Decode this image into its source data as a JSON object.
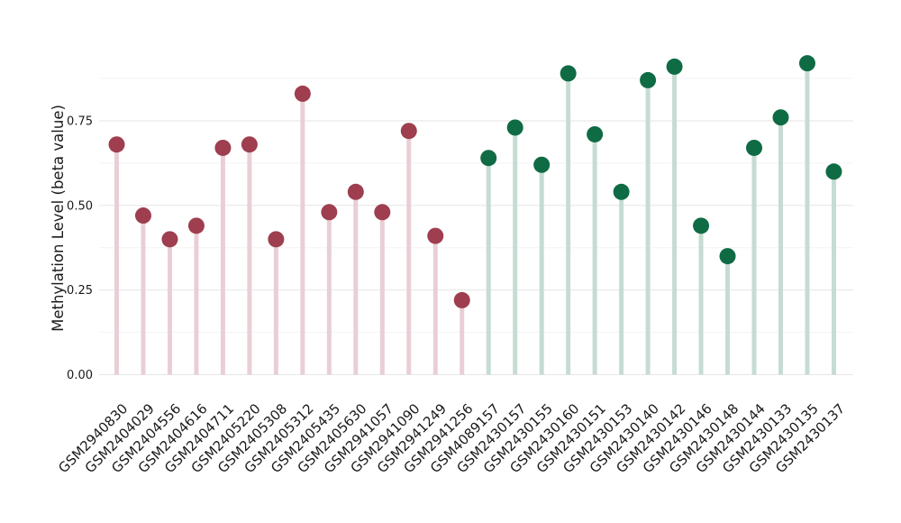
{
  "colors": {
    "background": "#FFFFFF",
    "grid_major": "#E6E6E6",
    "grid_minor": "#F3F3F3",
    "text": "#1A1A1A"
  },
  "chart_data": {
    "type": "lollipop",
    "title": "",
    "xlabel": "",
    "ylabel": "Methylation Level (beta value)",
    "ylim": [
      0,
      1.0
    ],
    "grid": "horizontal",
    "legend": "none",
    "ytick_labels": [
      "0.00",
      "0.25",
      "0.50",
      "0.75"
    ],
    "ytick_values": [
      0,
      0.25,
      0.5,
      0.75
    ],
    "minor_grid_values": [
      0.125,
      0.375,
      0.625,
      0.875
    ],
    "categories": [
      "GSM2940830",
      "GSM2404029",
      "GSM2404556",
      "GSM2404616",
      "GSM2404711",
      "GSM2405220",
      "GSM2405308",
      "GSM2405312",
      "GSM2405435",
      "GSM2405630",
      "GSM2941057",
      "GSM2941090",
      "GSM2941249",
      "GSM2941256",
      "GSM4089157",
      "GSM2430157",
      "GSM2430155",
      "GSM2430160",
      "GSM2430151",
      "GSM2430153",
      "GSM2430140",
      "GSM2430142",
      "GSM2430146",
      "GSM2430148",
      "GSM2430144",
      "GSM2430133",
      "GSM2430135",
      "GSM2430137"
    ],
    "values": [
      0.68,
      0.47,
      0.4,
      0.44,
      0.67,
      0.68,
      0.4,
      0.83,
      0.48,
      0.54,
      0.48,
      0.72,
      0.41,
      0.22,
      0.64,
      0.73,
      0.62,
      0.89,
      0.71,
      0.54,
      0.87,
      0.91,
      0.44,
      0.35,
      0.67,
      0.76,
      0.92,
      0.6
    ],
    "point_groups": [
      "maroon",
      "maroon",
      "maroon",
      "maroon",
      "maroon",
      "maroon",
      "maroon",
      "maroon",
      "maroon",
      "maroon",
      "maroon",
      "maroon",
      "maroon",
      "maroon",
      "green",
      "green",
      "green",
      "green",
      "green",
      "green",
      "green",
      "green",
      "green",
      "green",
      "green",
      "green",
      "green",
      "green"
    ],
    "group_styles": {
      "maroon": {
        "point_color": "#9E3E4E",
        "stem_color": "#E9CFD5"
      },
      "green": {
        "point_color": "#0F6B44",
        "stem_color": "#C6DCD2"
      }
    }
  }
}
